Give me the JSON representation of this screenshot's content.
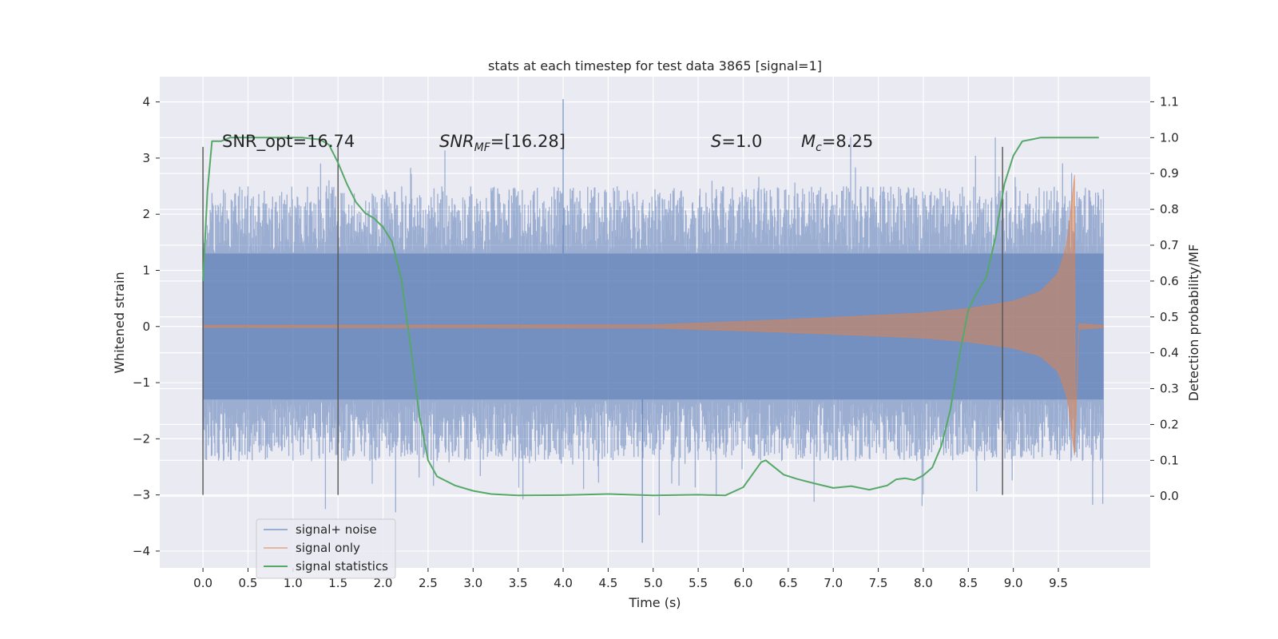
{
  "chart_data": {
    "type": "line",
    "title": "stats at each timestep for test data 3865 [signal=1]",
    "xlabel": "Time (s)",
    "ylabel": "Whitened strain",
    "y2label": "Detection probability/MF",
    "xlim": [
      -0.48,
      10.52
    ],
    "ylim": [
      -4.3,
      4.45
    ],
    "y2lim": [
      -0.2,
      1.17
    ],
    "x_ticks": [
      "0.0",
      "0.5",
      "1.0",
      "1.5",
      "2.0",
      "2.5",
      "3.0",
      "3.5",
      "4.0",
      "4.5",
      "5.0",
      "5.5",
      "6.0",
      "6.5",
      "7.0",
      "7.5",
      "8.0",
      "8.5",
      "9.0",
      "9.5"
    ],
    "y_ticks": [
      "4",
      "3",
      "2",
      "1",
      "0",
      "−1",
      "−2",
      "−3",
      "−4"
    ],
    "y2_ticks": [
      "1.1",
      "1.0",
      "0.9",
      "0.8",
      "0.7",
      "0.6",
      "0.5",
      "0.4",
      "0.3",
      "0.2",
      "0.1",
      "0.0"
    ],
    "grid": true,
    "legend_position": "lower-left",
    "colors": {
      "background": "#eaeaf2",
      "grid": "#ffffff",
      "signal_noise": "#4c72b0",
      "signal_only": "#dd8452",
      "signal_statistics": "#55a868",
      "vline": "#555555"
    },
    "annotations": {
      "snr_opt": "SNR_opt=16.74",
      "snr_mf_name": "SNR",
      "snr_mf_sub": "MF",
      "snr_mf_value": "=[16.28]",
      "s_name": "S",
      "s_value": "=1.0",
      "mc_name": "M",
      "mc_sub": "c",
      "mc_value": "=8.25"
    },
    "vertical_markers_x": [
      0.0,
      1.5,
      8.88
    ],
    "series": [
      {
        "name": "signal+ noise",
        "style": "dense band",
        "x_range": [
          0.0,
          10.0
        ],
        "core_envelope": [
          -1.3,
          1.3
        ],
        "typical_envelope": [
          -2.4,
          2.5
        ],
        "extremes": {
          "max": 4.05,
          "min": -3.85
        }
      },
      {
        "name": "signal only",
        "style": "chirp",
        "x_range": [
          0.0,
          10.0
        ],
        "merger_time": 9.68,
        "envelope": [
          {
            "x": 0.0,
            "amp": 0.02
          },
          {
            "x": 5.0,
            "amp": 0.03
          },
          {
            "x": 6.0,
            "amp": 0.09
          },
          {
            "x": 7.0,
            "amp": 0.16
          },
          {
            "x": 8.0,
            "amp": 0.24
          },
          {
            "x": 8.5,
            "amp": 0.32
          },
          {
            "x": 9.0,
            "amp": 0.45
          },
          {
            "x": 9.3,
            "amp": 0.62
          },
          {
            "x": 9.5,
            "amp": 0.95
          },
          {
            "x": 9.6,
            "amp": 1.5
          },
          {
            "x": 9.68,
            "amp": 2.7
          }
        ]
      },
      {
        "name": "signal statistics",
        "axis": "right",
        "points": [
          [
            0.0,
            0.6
          ],
          [
            0.05,
            0.85
          ],
          [
            0.1,
            0.99
          ],
          [
            0.2,
            0.99
          ],
          [
            0.3,
            1.0
          ],
          [
            1.1,
            1.0
          ],
          [
            1.3,
            0.995
          ],
          [
            1.4,
            0.98
          ],
          [
            1.5,
            0.93
          ],
          [
            1.6,
            0.87
          ],
          [
            1.7,
            0.82
          ],
          [
            1.8,
            0.79
          ],
          [
            1.9,
            0.775
          ],
          [
            2.0,
            0.75
          ],
          [
            2.1,
            0.71
          ],
          [
            2.2,
            0.61
          ],
          [
            2.3,
            0.43
          ],
          [
            2.4,
            0.23
          ],
          [
            2.5,
            0.1
          ],
          [
            2.6,
            0.055
          ],
          [
            2.8,
            0.03
          ],
          [
            3.0,
            0.015
          ],
          [
            3.2,
            0.006
          ],
          [
            3.5,
            0.002
          ],
          [
            4.0,
            0.003
          ],
          [
            4.5,
            0.006
          ],
          [
            5.0,
            0.002
          ],
          [
            5.5,
            0.004
          ],
          [
            5.8,
            0.002
          ],
          [
            6.0,
            0.025
          ],
          [
            6.1,
            0.06
          ],
          [
            6.2,
            0.095
          ],
          [
            6.25,
            0.1
          ],
          [
            6.3,
            0.09
          ],
          [
            6.45,
            0.06
          ],
          [
            6.6,
            0.048
          ],
          [
            6.8,
            0.035
          ],
          [
            7.0,
            0.023
          ],
          [
            7.2,
            0.028
          ],
          [
            7.4,
            0.018
          ],
          [
            7.6,
            0.03
          ],
          [
            7.7,
            0.047
          ],
          [
            7.8,
            0.05
          ],
          [
            7.9,
            0.045
          ],
          [
            8.0,
            0.058
          ],
          [
            8.1,
            0.08
          ],
          [
            8.2,
            0.14
          ],
          [
            8.3,
            0.24
          ],
          [
            8.4,
            0.39
          ],
          [
            8.5,
            0.52
          ],
          [
            8.6,
            0.57
          ],
          [
            8.7,
            0.61
          ],
          [
            8.8,
            0.72
          ],
          [
            8.9,
            0.87
          ],
          [
            9.0,
            0.95
          ],
          [
            9.1,
            0.99
          ],
          [
            9.2,
            0.995
          ],
          [
            9.3,
            1.0
          ],
          [
            9.95,
            1.0
          ]
        ]
      }
    ]
  }
}
